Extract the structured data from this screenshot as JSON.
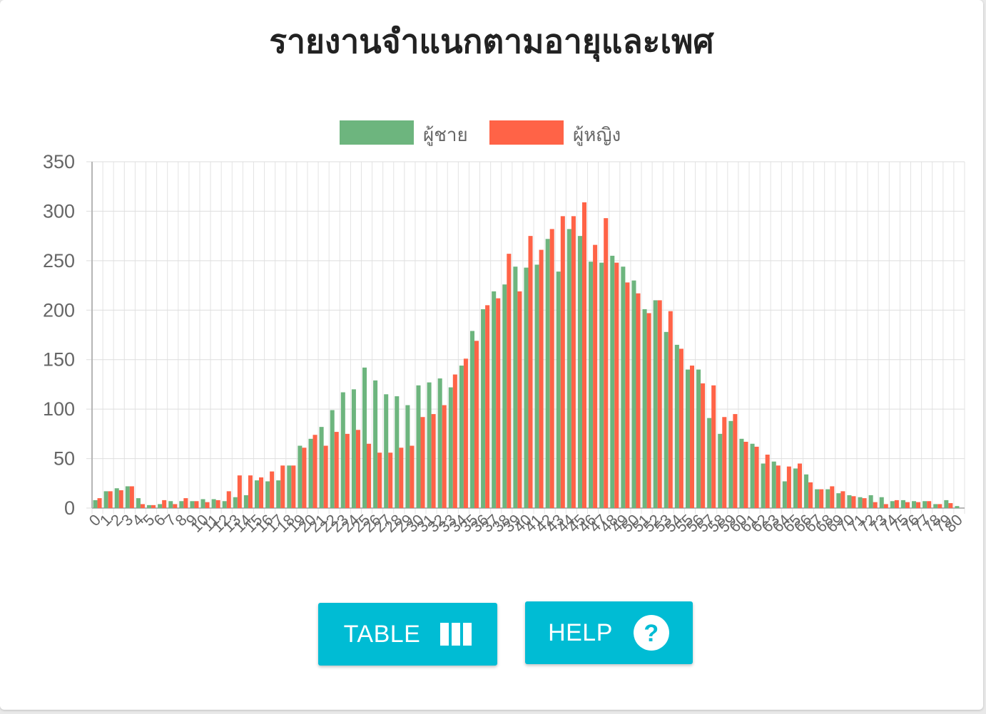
{
  "title": "รายงานจำแนกตามอายุและเพศ",
  "buttons": {
    "table_label": "TABLE",
    "help_label": "HELP"
  },
  "icons": {
    "table": "view-column-icon",
    "help": "help-circle-icon"
  },
  "colors": {
    "male": "#6db57e",
    "female": "#ff6347",
    "button": "#00bcd4"
  },
  "chart_data": {
    "type": "bar",
    "title": "รายงานจำแนกตามอายุและเพศ",
    "legend_position": "top",
    "grid": true,
    "ylim": [
      0,
      350
    ],
    "yticks": [
      0,
      50,
      100,
      150,
      200,
      250,
      300,
      350
    ],
    "categories": [
      "0",
      "1",
      "2",
      "3",
      "4",
      "5",
      "6",
      "7",
      "8",
      "9",
      "10",
      "11",
      "12",
      "13",
      "14",
      "15",
      "16",
      "17",
      "18",
      "19",
      "20",
      "21",
      "22",
      "23",
      "24",
      "25",
      "26",
      "27",
      "28",
      "29",
      "30",
      "31",
      "32",
      "33",
      "34",
      "35",
      "36",
      "37",
      "38",
      "39",
      "40",
      "41",
      "42",
      "43",
      "44",
      "45",
      "46",
      "47",
      "48",
      "49",
      "50",
      "51",
      "52",
      "53",
      "54",
      "55",
      "56",
      "57",
      "58",
      "59",
      "60",
      "61",
      "62",
      "63",
      "64",
      "65",
      "66",
      "67",
      "68",
      "69",
      "70",
      "71",
      "72",
      "73",
      "74",
      "75",
      "76",
      "77",
      "78",
      "79",
      "80"
    ],
    "series": [
      {
        "name": "ผู้ชาย",
        "color": "#6db57e",
        "values": [
          8,
          17,
          20,
          22,
          10,
          3,
          4,
          7,
          7,
          7,
          9,
          9,
          7,
          11,
          13,
          28,
          27,
          28,
          43,
          63,
          70,
          82,
          99,
          117,
          120,
          142,
          129,
          115,
          113,
          104,
          124,
          127,
          131,
          122,
          144,
          179,
          201,
          219,
          226,
          244,
          243,
          246,
          272,
          239,
          282,
          275,
          249,
          248,
          255,
          244,
          230,
          201,
          210,
          178,
          165,
          140,
          140,
          91,
          75,
          88,
          70,
          65,
          45,
          47,
          27,
          40,
          34,
          19,
          19,
          15,
          13,
          11,
          13,
          11,
          7,
          8,
          7,
          7,
          4,
          8,
          2
        ]
      },
      {
        "name": "ผู้หญิง",
        "color": "#ff6347",
        "values": [
          10,
          17,
          18,
          22,
          4,
          3,
          8,
          4,
          10,
          7,
          6,
          8,
          17,
          33,
          33,
          31,
          37,
          43,
          43,
          61,
          74,
          63,
          77,
          75,
          79,
          65,
          56,
          56,
          61,
          63,
          92,
          95,
          104,
          135,
          151,
          169,
          205,
          212,
          257,
          219,
          275,
          261,
          282,
          295,
          295,
          309,
          266,
          293,
          248,
          228,
          217,
          197,
          210,
          199,
          161,
          144,
          126,
          124,
          92,
          95,
          67,
          62,
          54,
          43,
          42,
          45,
          26,
          19,
          22,
          17,
          12,
          10,
          6,
          4,
          8,
          6,
          6,
          7,
          4,
          5,
          0
        ]
      }
    ]
  }
}
